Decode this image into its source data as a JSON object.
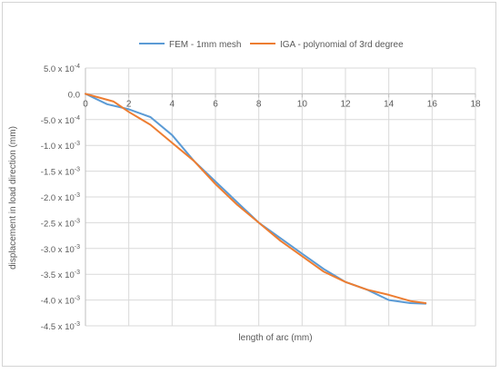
{
  "chart_data": {
    "type": "line",
    "title": "",
    "xlabel": "length of arc (mm)",
    "ylabel": "displacement in load direction  (mm)",
    "xlim": [
      0,
      18
    ],
    "ylim": [
      -0.0045,
      0.0005
    ],
    "x_ticks": [
      0,
      2,
      4,
      6,
      8,
      10,
      12,
      14,
      16,
      18
    ],
    "y_ticks": [
      {
        "value": 0.0005,
        "mantissa": "5.0",
        "exp": "-4"
      },
      {
        "value": 0.0,
        "mantissa": "0.0",
        "exp": ""
      },
      {
        "value": -0.0005,
        "mantissa": "-5.0",
        "exp": "-4"
      },
      {
        "value": -0.001,
        "mantissa": "-1.0",
        "exp": "-3"
      },
      {
        "value": -0.0015,
        "mantissa": "-1.5",
        "exp": "-3"
      },
      {
        "value": -0.002,
        "mantissa": "-2.0",
        "exp": "-3"
      },
      {
        "value": -0.0025,
        "mantissa": "-2.5",
        "exp": "-3"
      },
      {
        "value": -0.003,
        "mantissa": "-3.0",
        "exp": "-3"
      },
      {
        "value": -0.0035,
        "mantissa": "-3.5",
        "exp": "-3"
      },
      {
        "value": -0.004,
        "mantissa": "-4.0",
        "exp": "-3"
      },
      {
        "value": -0.0045,
        "mantissa": "-4.5",
        "exp": "-3"
      }
    ],
    "grid": true,
    "legend_position": "top",
    "series": [
      {
        "name": "FEM - 1mm mesh",
        "color": "#5b9bd5",
        "x": [
          0,
          1,
          2,
          3,
          4,
          5,
          6,
          7,
          8,
          9,
          10,
          11,
          12,
          13,
          14,
          15,
          15.7
        ],
        "y": [
          0.0,
          -0.0002,
          -0.0003,
          -0.00045,
          -0.0008,
          -0.0013,
          -0.0017,
          -0.0021,
          -0.0025,
          -0.0028,
          -0.0031,
          -0.0034,
          -0.00365,
          -0.0038,
          -0.004,
          -0.00406,
          -0.00407
        ]
      },
      {
        "name": "IGA - polynomial of 3rd degree",
        "color": "#ed7d31",
        "x": [
          0,
          1.3,
          2,
          3,
          4,
          5,
          6,
          7,
          8,
          9,
          10,
          11,
          12,
          13,
          14,
          15,
          15.7
        ],
        "y": [
          0.0,
          -0.00015,
          -0.00035,
          -0.0006,
          -0.00095,
          -0.0013,
          -0.00175,
          -0.00215,
          -0.0025,
          -0.00285,
          -0.00315,
          -0.00345,
          -0.00365,
          -0.0038,
          -0.0039,
          -0.00402,
          -0.00406
        ]
      }
    ]
  }
}
